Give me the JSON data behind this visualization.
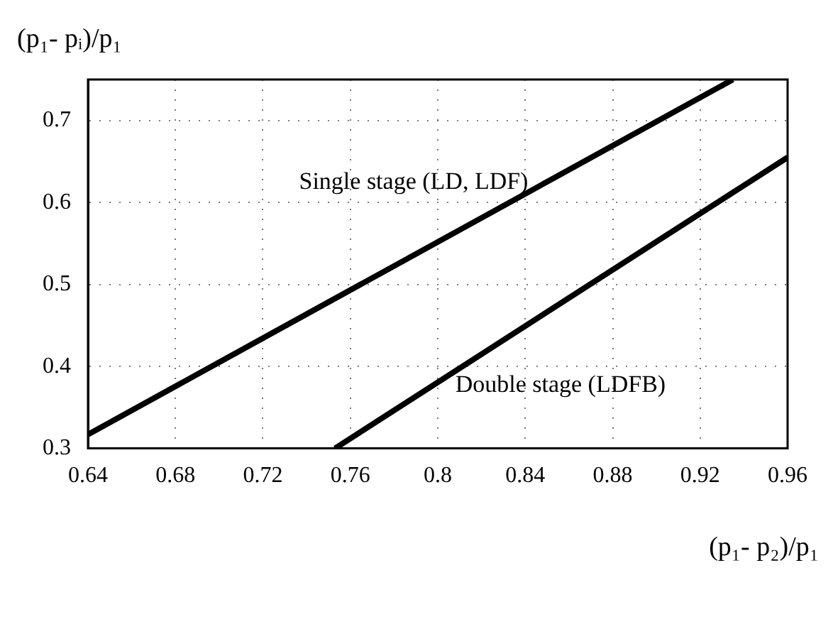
{
  "chart_data": {
    "type": "line",
    "xlabel": "(p₁- p₂)/p₁",
    "ylabel": "(p₁- pᵢ)/p₁",
    "xlim": [
      0.64,
      0.96
    ],
    "ylim": [
      0.3,
      0.75
    ],
    "xticks": [
      0.64,
      0.68,
      0.72,
      0.76,
      0.8,
      0.84,
      0.88,
      0.92,
      0.96
    ],
    "yticks": [
      0.3,
      0.4,
      0.5,
      0.6,
      0.7
    ],
    "grid": true,
    "marker": "none",
    "line_style": "solid",
    "series": [
      {
        "name": "Single stage (LD, LDF)",
        "color": "#000000",
        "x": [
          0.64,
          0.935
        ],
        "values": [
          0.317,
          0.75
        ]
      },
      {
        "name": "Double stage (LDFB)",
        "color": "#000000",
        "x": [
          0.753,
          0.96
        ],
        "values": [
          0.3,
          0.655
        ]
      }
    ]
  }
}
